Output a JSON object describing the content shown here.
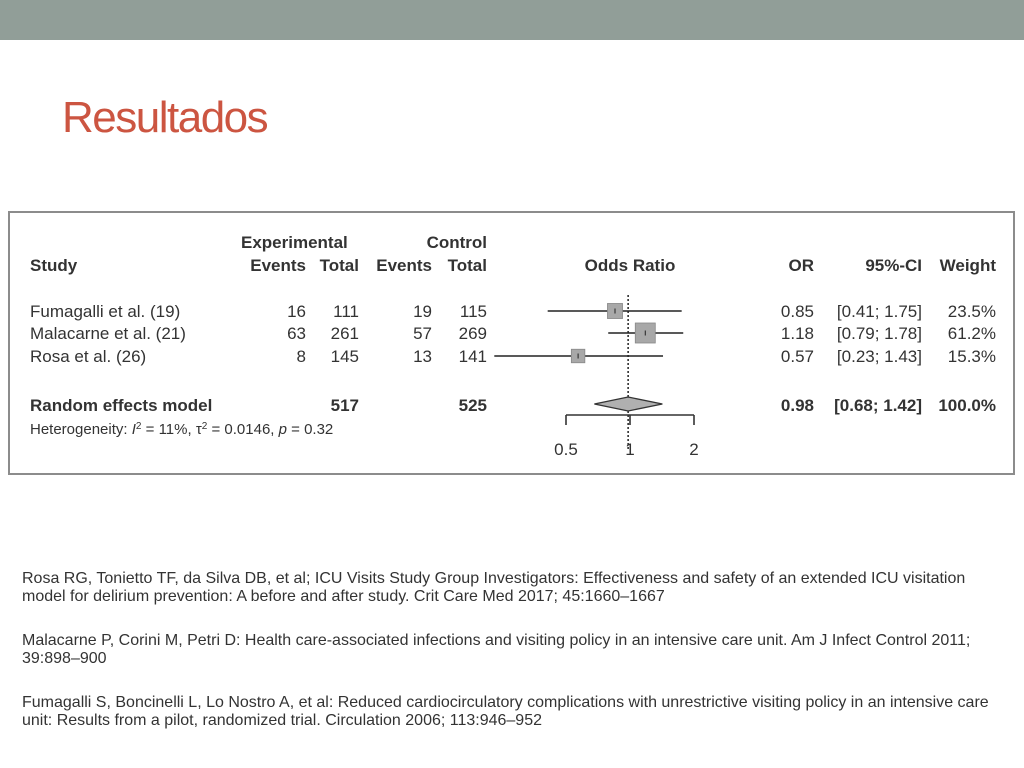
{
  "slide": {
    "title": "Resultados",
    "accent_color": "#cc5541",
    "top_bar_color": "#919e98"
  },
  "chart_data": {
    "type": "forest",
    "header": {
      "experimental_label": "Experimental",
      "control_label": "Control",
      "study_label": "Study",
      "events_label": "Events",
      "total_label": "Total",
      "odds_ratio_label": "Odds Ratio",
      "or_label": "OR",
      "ci_label": "95%-CI",
      "weight_label": "Weight"
    },
    "studies": [
      {
        "name": "Fumagalli et al. (19)",
        "exp_events": "16",
        "exp_total": "111",
        "ctrl_events": "19",
        "ctrl_total": "115",
        "or": 0.85,
        "ci_low": 0.41,
        "ci_high": 1.75,
        "or_text": "0.85",
        "ci_text": "[0.41; 1.75]",
        "weight_text": "23.5%",
        "weight": 23.5
      },
      {
        "name": "Malacarne et al. (21)",
        "exp_events": "63",
        "exp_total": "261",
        "ctrl_events": "57",
        "ctrl_total": "269",
        "or": 1.18,
        "ci_low": 0.79,
        "ci_high": 1.78,
        "or_text": "1.18",
        "ci_text": "[0.79; 1.78]",
        "weight_text": "61.2%",
        "weight": 61.2
      },
      {
        "name": "Rosa et al. (26)",
        "exp_events": "8",
        "exp_total": "145",
        "ctrl_events": "13",
        "ctrl_total": "141",
        "or": 0.57,
        "ci_low": 0.23,
        "ci_high": 1.43,
        "or_text": "0.57",
        "ci_text": "[0.23; 1.43]",
        "weight_text": "15.3%",
        "weight": 15.3
      }
    ],
    "summary": {
      "name": "Random effects model",
      "exp_total": "517",
      "ctrl_total": "525",
      "or": 0.98,
      "ci_low": 0.68,
      "ci_high": 1.42,
      "or_text": "0.98",
      "ci_text": "[0.68; 1.42]",
      "weight_text": "100.0%"
    },
    "heterogeneity": {
      "prefix": "Heterogeneity: ",
      "i2_label": "I",
      "i2_value": " = 11%, ",
      "tau_label": "τ",
      "tau_value": " = 0.0146, ",
      "p_label": "p",
      "p_value": " = 0.32"
    },
    "x_axis": {
      "scale": "log",
      "ticks": [
        0.5,
        1,
        2
      ],
      "tick_labels": [
        "0.5",
        "1",
        "2"
      ],
      "xlim": [
        0.5,
        2
      ]
    }
  },
  "references": [
    "Rosa RG, Tonietto TF, da Silva DB, et al; ICU Visits Study Group Investigators: Effectiveness and safety of an extended ICU visitation model for delirium prevention: A before and after study. Crit Care Med  2017; 45:1660–1667",
    "Malacarne P, Corini M, Petri D: Health care-associated infections and visiting policy in an intensive care unit. Am J Infect Control 2011; 39:898–900",
    "Fumagalli S, Boncinelli L, Lo Nostro A, et al: Reduced cardiocirculatory complications with unrestrictive visiting policy in an intensive care unit: Results from a pilot, randomized trial. Circulation 2006; 113:946–952"
  ]
}
